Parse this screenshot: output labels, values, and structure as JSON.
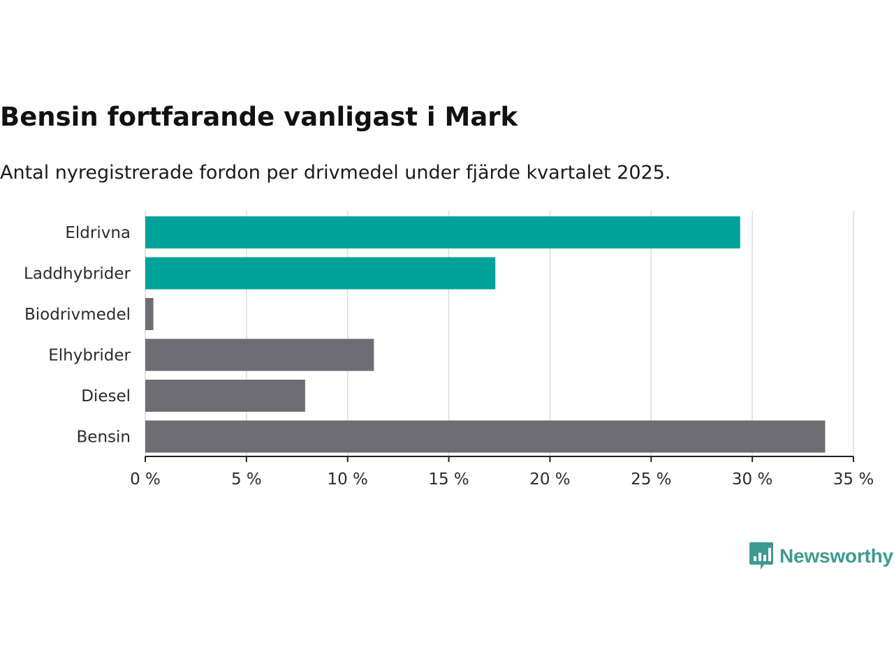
{
  "chart_data": {
    "type": "bar",
    "orientation": "horizontal",
    "title": "Bensin fortfarande vanligast i Mark",
    "subtitle": "Antal nyregistrerade fordon per drivmedel under fjärde kvartalet 2025.",
    "categories": [
      "Eldrivna",
      "Laddhybrider",
      "Biodrivmedel",
      "Elhybrider",
      "Diesel",
      "Bensin"
    ],
    "values": [
      29.4,
      17.3,
      0.4,
      11.3,
      7.9,
      33.6
    ],
    "bar_colors": [
      "#00a39a",
      "#00a39a",
      "#6e6d73",
      "#6e6d73",
      "#6e6d73",
      "#6e6d73"
    ],
    "xlim": [
      0,
      35
    ],
    "xticks": [
      0,
      5,
      10,
      15,
      20,
      25,
      30,
      35
    ],
    "xtick_labels": [
      "0 %",
      "5 %",
      "10 %",
      "15 %",
      "20 %",
      "25 %",
      "30 %",
      "35 %"
    ],
    "xlabel": "",
    "ylabel": "",
    "grid": true
  },
  "logo": {
    "text": "Newsworthy",
    "color": "#3e9a91"
  }
}
